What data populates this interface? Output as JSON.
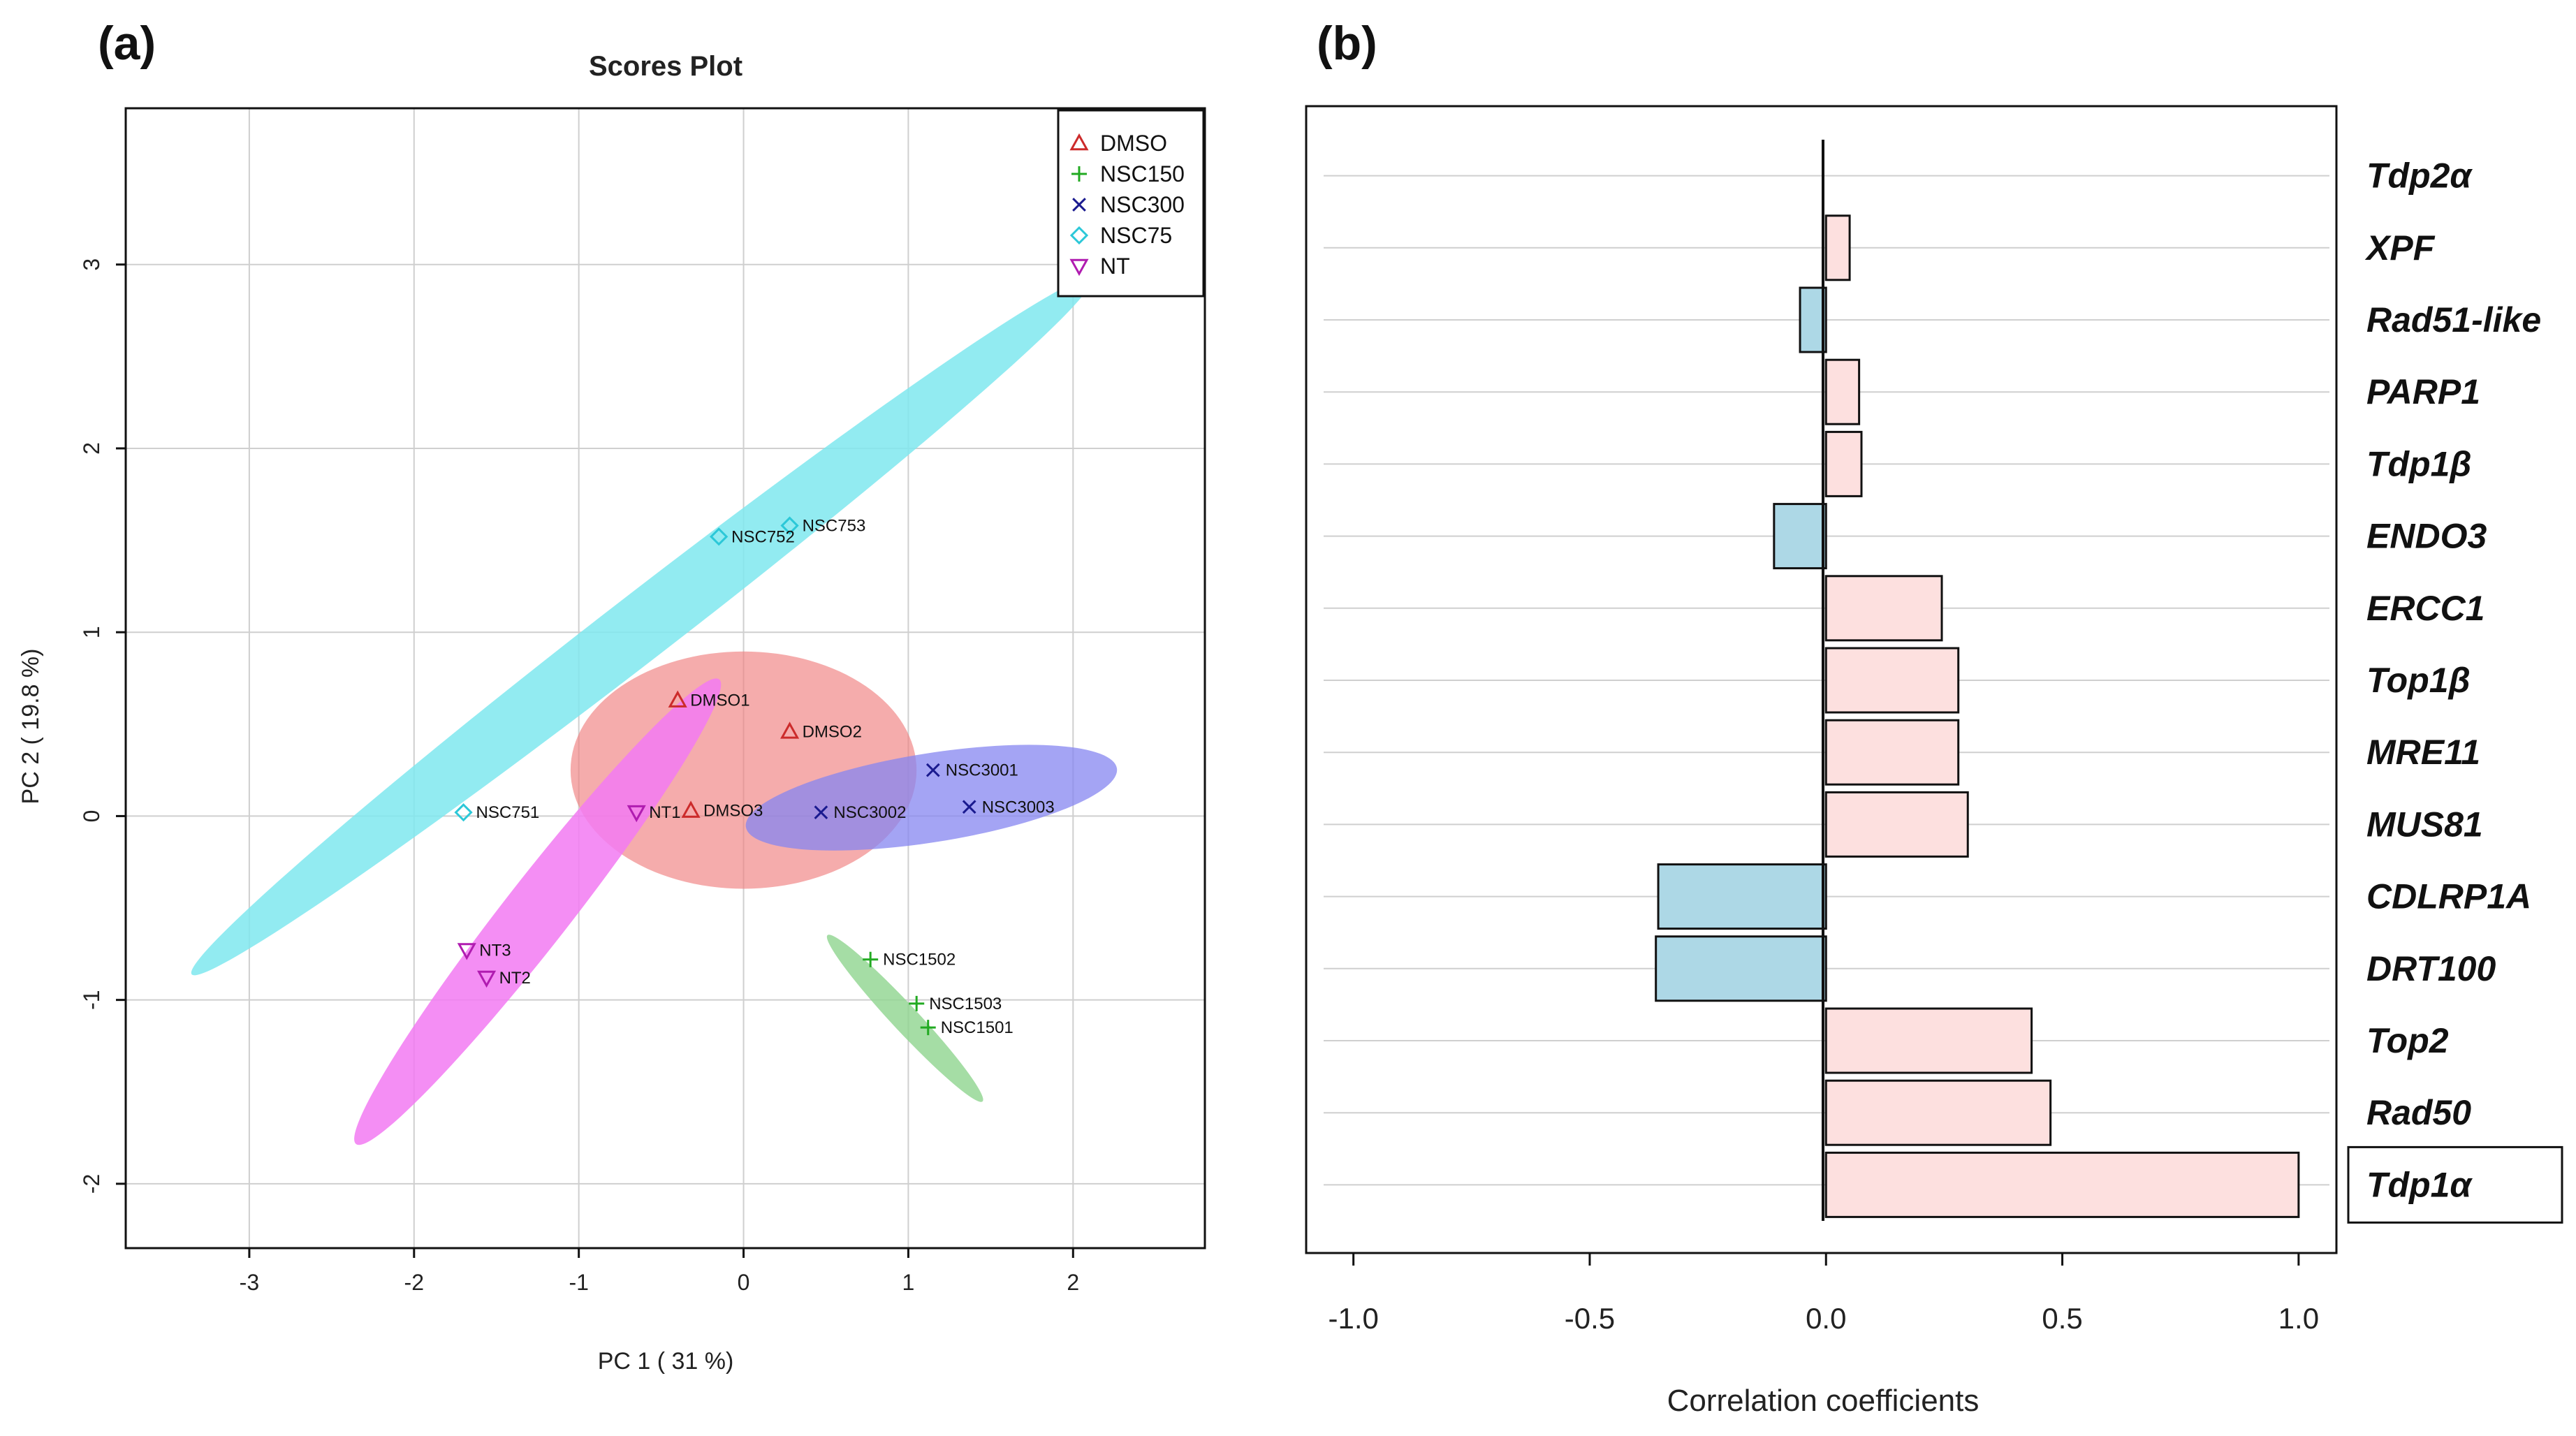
{
  "chart_data": [
    {
      "type": "scatter",
      "panel_label": "(a)",
      "title": "Scores Plot",
      "xlabel": "PC 1 ( 31 %)",
      "ylabel": "PC 2 ( 19.8 %)",
      "xlim": [
        -3.75,
        2.8
      ],
      "ylim": [
        -2.35,
        3.85
      ],
      "xticks": [
        -3,
        -2,
        -1,
        0,
        1,
        2
      ],
      "yticks": [
        -2,
        -1,
        0,
        1,
        2,
        3
      ],
      "grid": true,
      "legend_position": "top-right",
      "series": [
        {
          "name": "DMSO",
          "marker": "triangle-up",
          "color": "#cc2b2b",
          "ellipse": {
            "cx": 0.0,
            "cy": 0.25,
            "a": 0.72,
            "b": 1.05,
            "angle": 90,
            "color": "#f08080",
            "opacity": 0.65
          },
          "points": [
            {
              "label": "DMSO1",
              "x": -0.4,
              "y": 0.63
            },
            {
              "label": "DMSO2",
              "x": 0.28,
              "y": 0.46
            },
            {
              "label": "DMSO3",
              "x": -0.32,
              "y": 0.03
            }
          ]
        },
        {
          "name": "NSC150",
          "marker": "plus",
          "color": "#22aa22",
          "ellipse": {
            "cx": 0.98,
            "cy": -1.1,
            "a": 0.69,
            "b": 0.08,
            "angle": -47,
            "color": "#8fd48f",
            "opacity": 0.8
          },
          "points": [
            {
              "label": "NSC1502",
              "x": 0.77,
              "y": -0.78
            },
            {
              "label": "NSC1503",
              "x": 1.05,
              "y": -1.02
            },
            {
              "label": "NSC1501",
              "x": 1.12,
              "y": -1.15
            }
          ]
        },
        {
          "name": "NSC300",
          "marker": "cross",
          "color": "#1a1a8f",
          "ellipse": {
            "cx": 1.14,
            "cy": 0.1,
            "a": 1.14,
            "b": 0.27,
            "angle": 9,
            "color": "#8585f0",
            "opacity": 0.75
          },
          "points": [
            {
              "label": "NSC3001",
              "x": 1.15,
              "y": 0.25
            },
            {
              "label": "NSC3002",
              "x": 0.47,
              "y": 0.02
            },
            {
              "label": "NSC3003",
              "x": 1.37,
              "y": 0.05
            }
          ]
        },
        {
          "name": "NSC75",
          "marker": "diamond",
          "color": "#2cc8d8",
          "ellipse": {
            "cx": -0.62,
            "cy": 1.03,
            "a": 3.45,
            "b": 0.2,
            "angle": 37.7,
            "color": "#7fe8ef",
            "opacity": 0.85
          },
          "points": [
            {
              "label": "NSC752",
              "x": -0.15,
              "y": 1.52
            },
            {
              "label": "NSC753",
              "x": 0.28,
              "y": 1.58
            },
            {
              "label": "NSC751",
              "x": -1.7,
              "y": 0.02
            }
          ]
        },
        {
          "name": "NT",
          "marker": "triangle-down",
          "color": "#b01cb0",
          "ellipse": {
            "cx": -1.25,
            "cy": -0.52,
            "a": 1.79,
            "b": 0.2,
            "angle": 52,
            "color": "#f27af2",
            "opacity": 0.85
          },
          "points": [
            {
              "label": "NT1",
              "x": -0.65,
              "y": 0.02
            },
            {
              "label": "NT3",
              "x": -1.68,
              "y": -0.73
            },
            {
              "label": "NT2",
              "x": -1.56,
              "y": -0.88
            }
          ]
        }
      ]
    },
    {
      "type": "bar",
      "orientation": "horizontal",
      "panel_label": "(b)",
      "xlabel": "Correlation coefficients",
      "xlim": [
        -1.1,
        1.08
      ],
      "xticks": [
        "-1.0",
        "-0.5",
        "0.0",
        "0.5",
        "1.0"
      ],
      "positive_color": "#fde0df",
      "negative_color": "#add8e6",
      "highlighted": "Tdp1α",
      "categories": [
        "Tdp2α",
        "XPF",
        "Rad51-like",
        "PARP1",
        "Tdp1β",
        "ENDO3",
        "ERCC1",
        "Top1β",
        "MRE11",
        "MUS81",
        "CDLRP1A",
        "DRT100",
        "Top2",
        "Rad50",
        "Tdp1α"
      ],
      "values": [
        0.0,
        0.05,
        -0.055,
        0.07,
        0.075,
        -0.11,
        0.245,
        0.28,
        0.28,
        0.3,
        -0.355,
        -0.36,
        0.435,
        0.475,
        1.0
      ]
    }
  ]
}
